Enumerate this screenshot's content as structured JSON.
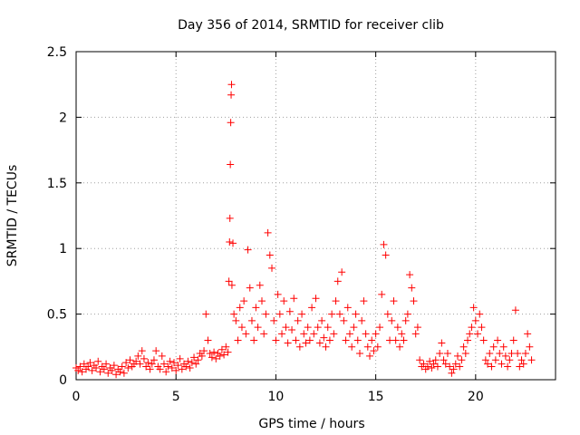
{
  "chart_data": {
    "type": "scatter",
    "title": "Day 356 of 2014, SRMTID for receiver clib",
    "xlabel": "GPS time / hours",
    "ylabel": "SRMTID / TECUs",
    "xlim": [
      0,
      24
    ],
    "ylim": [
      0,
      2.5
    ],
    "xticks": [
      0,
      5,
      10,
      15,
      20
    ],
    "yticks": [
      0,
      0.5,
      1,
      1.5,
      2,
      2.5
    ],
    "xtick_labels": [
      "0",
      "5",
      "10",
      "15",
      "20"
    ],
    "ytick_labels": [
      "0",
      "0.5",
      "1",
      "1.5",
      "2",
      "2.5"
    ],
    "grid": true,
    "marker": "+",
    "series": [
      {
        "name": "SRMTID",
        "color": "#ff0000",
        "points": [
          [
            0.0,
            0.09
          ],
          [
            0.1,
            0.07
          ],
          [
            0.2,
            0.1
          ],
          [
            0.3,
            0.06
          ],
          [
            0.4,
            0.12
          ],
          [
            0.5,
            0.08
          ],
          [
            0.6,
            0.1
          ],
          [
            0.7,
            0.13
          ],
          [
            0.8,
            0.07
          ],
          [
            0.9,
            0.11
          ],
          [
            1.0,
            0.09
          ],
          [
            1.1,
            0.14
          ],
          [
            1.2,
            0.06
          ],
          [
            1.3,
            0.1
          ],
          [
            1.4,
            0.08
          ],
          [
            1.5,
            0.12
          ],
          [
            1.6,
            0.05
          ],
          [
            1.7,
            0.09
          ],
          [
            1.8,
            0.07
          ],
          [
            1.9,
            0.11
          ],
          [
            2.0,
            0.04
          ],
          [
            2.1,
            0.08
          ],
          [
            2.2,
            0.06
          ],
          [
            2.3,
            0.1
          ],
          [
            2.4,
            0.05
          ],
          [
            2.5,
            0.13
          ],
          [
            2.6,
            0.09
          ],
          [
            2.7,
            0.15
          ],
          [
            2.8,
            0.1
          ],
          [
            2.9,
            0.12
          ],
          [
            3.0,
            0.14
          ],
          [
            3.1,
            0.18
          ],
          [
            3.2,
            0.12
          ],
          [
            3.3,
            0.22
          ],
          [
            3.4,
            0.16
          ],
          [
            3.5,
            0.1
          ],
          [
            3.6,
            0.13
          ],
          [
            3.7,
            0.08
          ],
          [
            3.8,
            0.12
          ],
          [
            3.9,
            0.15
          ],
          [
            4.0,
            0.22
          ],
          [
            4.1,
            0.1
          ],
          [
            4.2,
            0.08
          ],
          [
            4.3,
            0.18
          ],
          [
            4.4,
            0.12
          ],
          [
            4.5,
            0.06
          ],
          [
            4.6,
            0.1
          ],
          [
            4.7,
            0.14
          ],
          [
            4.8,
            0.09
          ],
          [
            4.9,
            0.13
          ],
          [
            5.0,
            0.07
          ],
          [
            5.1,
            0.11
          ],
          [
            5.2,
            0.16
          ],
          [
            5.3,
            0.08
          ],
          [
            5.4,
            0.12
          ],
          [
            5.5,
            0.1
          ],
          [
            5.6,
            0.14
          ],
          [
            5.7,
            0.09
          ],
          [
            5.8,
            0.13
          ],
          [
            5.9,
            0.17
          ],
          [
            6.0,
            0.12
          ],
          [
            6.1,
            0.15
          ],
          [
            6.2,
            0.2
          ],
          [
            6.3,
            0.18
          ],
          [
            6.4,
            0.22
          ],
          [
            6.5,
            0.5
          ],
          [
            6.6,
            0.3
          ],
          [
            6.7,
            0.2
          ],
          [
            6.8,
            0.17
          ],
          [
            6.9,
            0.21
          ],
          [
            7.0,
            0.16
          ],
          [
            7.1,
            0.2
          ],
          [
            7.2,
            0.18
          ],
          [
            7.3,
            0.23
          ],
          [
            7.4,
            0.19
          ],
          [
            7.5,
            0.25
          ],
          [
            7.6,
            0.21
          ],
          [
            7.65,
            0.75
          ],
          [
            7.68,
            1.05
          ],
          [
            7.7,
            1.23
          ],
          [
            7.72,
            1.64
          ],
          [
            7.74,
            1.96
          ],
          [
            7.76,
            2.17
          ],
          [
            7.78,
            2.25
          ],
          [
            7.8,
            0.72
          ],
          [
            7.85,
            1.04
          ],
          [
            7.9,
            0.5
          ],
          [
            8.0,
            0.45
          ],
          [
            8.1,
            0.3
          ],
          [
            8.2,
            0.55
          ],
          [
            8.3,
            0.4
          ],
          [
            8.4,
            0.6
          ],
          [
            8.5,
            0.35
          ],
          [
            8.6,
            0.99
          ],
          [
            8.7,
            0.7
          ],
          [
            8.8,
            0.45
          ],
          [
            8.9,
            0.3
          ],
          [
            9.0,
            0.55
          ],
          [
            9.1,
            0.4
          ],
          [
            9.2,
            0.72
          ],
          [
            9.3,
            0.6
          ],
          [
            9.4,
            0.35
          ],
          [
            9.5,
            0.5
          ],
          [
            9.6,
            1.12
          ],
          [
            9.7,
            0.95
          ],
          [
            9.8,
            0.85
          ],
          [
            9.9,
            0.45
          ],
          [
            10.0,
            0.3
          ],
          [
            10.1,
            0.65
          ],
          [
            10.2,
            0.5
          ],
          [
            10.3,
            0.35
          ],
          [
            10.4,
            0.6
          ],
          [
            10.5,
            0.4
          ],
          [
            10.6,
            0.28
          ],
          [
            10.7,
            0.52
          ],
          [
            10.8,
            0.38
          ],
          [
            10.9,
            0.62
          ],
          [
            11.0,
            0.3
          ],
          [
            11.1,
            0.45
          ],
          [
            11.2,
            0.25
          ],
          [
            11.3,
            0.5
          ],
          [
            11.4,
            0.35
          ],
          [
            11.5,
            0.28
          ],
          [
            11.6,
            0.4
          ],
          [
            11.7,
            0.3
          ],
          [
            11.8,
            0.55
          ],
          [
            11.9,
            0.35
          ],
          [
            12.0,
            0.62
          ],
          [
            12.1,
            0.4
          ],
          [
            12.2,
            0.28
          ],
          [
            12.3,
            0.45
          ],
          [
            12.4,
            0.32
          ],
          [
            12.5,
            0.25
          ],
          [
            12.6,
            0.4
          ],
          [
            12.7,
            0.3
          ],
          [
            12.8,
            0.5
          ],
          [
            12.9,
            0.35
          ],
          [
            13.0,
            0.6
          ],
          [
            13.1,
            0.75
          ],
          [
            13.2,
            0.5
          ],
          [
            13.3,
            0.82
          ],
          [
            13.4,
            0.45
          ],
          [
            13.5,
            0.3
          ],
          [
            13.6,
            0.55
          ],
          [
            13.7,
            0.35
          ],
          [
            13.8,
            0.25
          ],
          [
            13.9,
            0.4
          ],
          [
            14.0,
            0.5
          ],
          [
            14.1,
            0.3
          ],
          [
            14.2,
            0.2
          ],
          [
            14.3,
            0.45
          ],
          [
            14.4,
            0.6
          ],
          [
            14.5,
            0.35
          ],
          [
            14.6,
            0.25
          ],
          [
            14.7,
            0.18
          ],
          [
            14.8,
            0.3
          ],
          [
            14.9,
            0.22
          ],
          [
            15.0,
            0.35
          ],
          [
            15.1,
            0.25
          ],
          [
            15.2,
            0.4
          ],
          [
            15.3,
            0.65
          ],
          [
            15.4,
            1.03
          ],
          [
            15.5,
            0.95
          ],
          [
            15.6,
            0.5
          ],
          [
            15.7,
            0.3
          ],
          [
            15.8,
            0.45
          ],
          [
            15.9,
            0.6
          ],
          [
            16.0,
            0.3
          ],
          [
            16.1,
            0.4
          ],
          [
            16.2,
            0.25
          ],
          [
            16.3,
            0.35
          ],
          [
            16.4,
            0.3
          ],
          [
            16.5,
            0.45
          ],
          [
            16.6,
            0.5
          ],
          [
            16.7,
            0.8
          ],
          [
            16.8,
            0.7
          ],
          [
            16.9,
            0.6
          ],
          [
            17.0,
            0.35
          ],
          [
            17.1,
            0.4
          ],
          [
            17.2,
            0.15
          ],
          [
            17.3,
            0.1
          ],
          [
            17.4,
            0.12
          ],
          [
            17.5,
            0.08
          ],
          [
            17.6,
            0.1
          ],
          [
            17.7,
            0.14
          ],
          [
            17.8,
            0.09
          ],
          [
            17.9,
            0.12
          ],
          [
            18.0,
            0.15
          ],
          [
            18.1,
            0.1
          ],
          [
            18.2,
            0.2
          ],
          [
            18.3,
            0.28
          ],
          [
            18.4,
            0.15
          ],
          [
            18.5,
            0.12
          ],
          [
            18.6,
            0.2
          ],
          [
            18.7,
            0.1
          ],
          [
            18.8,
            0.05
          ],
          [
            18.9,
            0.08
          ],
          [
            19.0,
            0.12
          ],
          [
            19.1,
            0.18
          ],
          [
            19.2,
            0.1
          ],
          [
            19.3,
            0.15
          ],
          [
            19.4,
            0.25
          ],
          [
            19.5,
            0.2
          ],
          [
            19.6,
            0.3
          ],
          [
            19.7,
            0.35
          ],
          [
            19.8,
            0.4
          ],
          [
            19.9,
            0.55
          ],
          [
            20.0,
            0.45
          ],
          [
            20.1,
            0.35
          ],
          [
            20.2,
            0.5
          ],
          [
            20.3,
            0.4
          ],
          [
            20.4,
            0.3
          ],
          [
            20.5,
            0.15
          ],
          [
            20.6,
            0.12
          ],
          [
            20.7,
            0.2
          ],
          [
            20.8,
            0.1
          ],
          [
            20.9,
            0.25
          ],
          [
            21.0,
            0.15
          ],
          [
            21.1,
            0.3
          ],
          [
            21.2,
            0.2
          ],
          [
            21.3,
            0.12
          ],
          [
            21.4,
            0.25
          ],
          [
            21.5,
            0.18
          ],
          [
            21.6,
            0.1
          ],
          [
            21.7,
            0.15
          ],
          [
            21.8,
            0.2
          ],
          [
            21.9,
            0.3
          ],
          [
            22.0,
            0.53
          ],
          [
            22.1,
            0.2
          ],
          [
            22.2,
            0.1
          ],
          [
            22.3,
            0.15
          ],
          [
            22.4,
            0.12
          ],
          [
            22.5,
            0.2
          ],
          [
            22.6,
            0.35
          ],
          [
            22.7,
            0.25
          ],
          [
            22.8,
            0.15
          ]
        ]
      }
    ]
  }
}
